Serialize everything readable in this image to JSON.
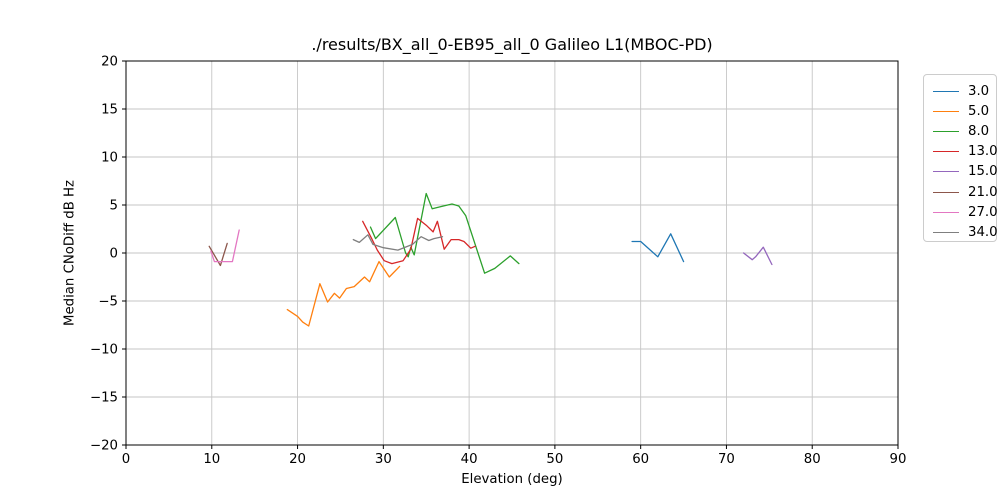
{
  "chart_data": {
    "type": "line",
    "title": "./results/BX_all_0-EB95_all_0 Galileo L1(MBOC-PD)",
    "xlabel": "Elevation (deg)",
    "ylabel": "Median CNoDiff dB Hz",
    "xlim": [
      0,
      90
    ],
    "ylim": [
      -20,
      20
    ],
    "xticks": [
      0,
      10,
      20,
      30,
      40,
      50,
      60,
      70,
      80,
      90
    ],
    "yticks": [
      -20,
      -15,
      -10,
      -5,
      0,
      5,
      10,
      15,
      20
    ],
    "grid": true,
    "grid_color": "#c6c6c6",
    "spine_color": "#000000",
    "legend_position": "outside-right",
    "series": [
      {
        "name": "3.0",
        "color": "#1f77b4",
        "points": [
          [
            59,
            1.2
          ],
          [
            60,
            1.2
          ],
          [
            62,
            -0.4
          ],
          [
            63.5,
            2.0
          ],
          [
            65,
            -0.9
          ]
        ]
      },
      {
        "name": "5.0",
        "color": "#ff7f0e",
        "points": [
          [
            18.8,
            -5.9
          ],
          [
            20,
            -6.6
          ],
          [
            20.6,
            -7.2
          ],
          [
            21.3,
            -7.6
          ],
          [
            22.6,
            -3.2
          ],
          [
            23.5,
            -5.1
          ],
          [
            24.3,
            -4.2
          ],
          [
            24.9,
            -4.7
          ],
          [
            25.7,
            -3.7
          ],
          [
            26.6,
            -3.5
          ],
          [
            27.8,
            -2.5
          ],
          [
            28.4,
            -3.0
          ],
          [
            29.5,
            -0.9
          ],
          [
            30.7,
            -2.5
          ],
          [
            31.9,
            -1.4
          ]
        ]
      },
      {
        "name": "8.0",
        "color": "#2ca02c",
        "points": [
          [
            28.5,
            2.7
          ],
          [
            29.1,
            1.5
          ],
          [
            31.4,
            3.7
          ],
          [
            32.6,
            0.0
          ],
          [
            32.9,
            -0.4
          ],
          [
            33.2,
            0.6
          ],
          [
            33.6,
            -0.2
          ],
          [
            35,
            6.2
          ],
          [
            35.7,
            4.6
          ],
          [
            37,
            4.9
          ],
          [
            38,
            5.1
          ],
          [
            38.8,
            4.9
          ],
          [
            39.6,
            3.9
          ],
          [
            41.8,
            -2.1
          ],
          [
            43,
            -1.6
          ],
          [
            44.8,
            -0.3
          ],
          [
            45.8,
            -1.1
          ]
        ]
      },
      {
        "name": "13.0",
        "color": "#d62728",
        "points": [
          [
            27.6,
            3.3
          ],
          [
            28.7,
            1.4
          ],
          [
            29.3,
            0.3
          ],
          [
            30.1,
            -0.8
          ],
          [
            31,
            -1.1
          ],
          [
            32.3,
            -0.8
          ],
          [
            33.2,
            0.4
          ],
          [
            34,
            3.6
          ],
          [
            35,
            2.9
          ],
          [
            35.8,
            2.2
          ],
          [
            36.3,
            3.3
          ],
          [
            37.1,
            0.4
          ],
          [
            37.9,
            1.4
          ],
          [
            38.8,
            1.4
          ],
          [
            39.4,
            1.2
          ],
          [
            40.2,
            0.5
          ],
          [
            40.7,
            0.7
          ]
        ]
      },
      {
        "name": "15.0",
        "color": "#9467bd",
        "points": [
          [
            72,
            0.0
          ],
          [
            73,
            -0.7
          ],
          [
            73.4,
            -0.4
          ],
          [
            74.3,
            0.6
          ],
          [
            75.3,
            -1.2
          ]
        ]
      },
      {
        "name": "21.0",
        "color": "#8c564b",
        "points": [
          [
            9.7,
            0.7
          ],
          [
            11,
            -1.3
          ],
          [
            11.8,
            1.0
          ]
        ]
      },
      {
        "name": "27.0",
        "color": "#e377c2",
        "points": [
          [
            9.9,
            0.2
          ],
          [
            10.3,
            -0.9
          ],
          [
            12.4,
            -0.9
          ],
          [
            13.2,
            2.4
          ]
        ]
      },
      {
        "name": "34.0",
        "color": "#7f7f7f",
        "points": [
          [
            26.5,
            1.4
          ],
          [
            27.2,
            1.1
          ],
          [
            28.2,
            1.9
          ],
          [
            28.8,
            0.9
          ],
          [
            30,
            0.55
          ],
          [
            31.7,
            0.3
          ],
          [
            33.4,
            0.9
          ],
          [
            34.4,
            1.7
          ],
          [
            35.3,
            1.3
          ],
          [
            35.9,
            1.5
          ],
          [
            36.9,
            1.7
          ]
        ]
      }
    ]
  }
}
